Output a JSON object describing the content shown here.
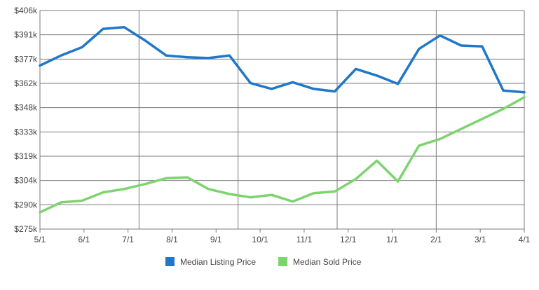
{
  "chart_data": {
    "type": "line",
    "title": "",
    "xlabel": "",
    "ylabel": "",
    "grid": true,
    "legend": "bottom-center",
    "y_ticks": [
      "$275k",
      "$290k",
      "$304k",
      "$319k",
      "$333k",
      "$348k",
      "$362k",
      "$377k",
      "$391k",
      "$406k"
    ],
    "x_ticks": [
      "5/1",
      "6/1",
      "7/1",
      "8/1",
      "9/1",
      "10/1",
      "11/1",
      "12/1",
      "1/1",
      "2/1",
      "3/1",
      "4/1"
    ],
    "ylim": [
      275,
      406
    ],
    "x_index_range": [
      0,
      22
    ],
    "x_tick_index": [
      0,
      2,
      4,
      6,
      8,
      10,
      12,
      14,
      16,
      18,
      20,
      22
    ],
    "vertical_grid_index": [
      4.5,
      9,
      13.5,
      18
    ],
    "series": [
      {
        "name": "Median Listing Price",
        "color": "#1f77c9",
        "values": [
          373,
          379,
          384,
          395,
          396,
          388,
          379,
          378,
          377.5,
          379,
          362.5,
          359,
          363,
          359,
          357.5,
          371,
          367,
          362,
          383,
          391,
          385,
          384.5,
          358,
          357
        ]
      },
      {
        "name": "Median Sold Price",
        "color": "#7dd46e",
        "values": [
          285,
          291,
          292,
          297,
          299,
          302,
          305.5,
          306,
          299,
          296,
          294,
          295.5,
          291.5,
          296.5,
          297.5,
          305,
          316,
          303.5,
          325,
          329,
          335,
          341,
          347,
          354
        ]
      }
    ]
  },
  "legend": {
    "items": [
      {
        "label": "Median Listing Price",
        "color": "#1f77c9"
      },
      {
        "label": "Median Sold Price",
        "color": "#7dd46e"
      }
    ]
  }
}
